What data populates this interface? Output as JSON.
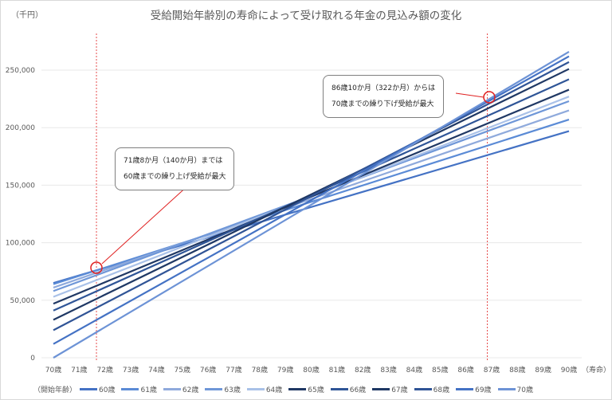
{
  "chart_data": {
    "type": "line",
    "title": "受給開始年齢別の寿命によって受け取れる年金の見込み額の変化",
    "ylabel": "（千円）",
    "xlabel": "（寿命）",
    "ylim": [
      0,
      250000
    ],
    "yticks": [
      "0",
      "50,000",
      "100,000",
      "150,000",
      "200,000",
      "250,000"
    ],
    "categories": [
      "70歳",
      "71歳",
      "72歳",
      "73歳",
      "74歳",
      "75歳",
      "76歳",
      "77歳",
      "78歳",
      "79歳",
      "80歳",
      "81歳",
      "82歳",
      "83歳",
      "84歳",
      "85歳",
      "86歳",
      "87歳",
      "88歳",
      "89歳",
      "90歳"
    ],
    "grid": true,
    "legend_position": "bottom",
    "legend_title": "（開始年齢）",
    "series": [
      {
        "name": "60歳",
        "color": "#4472c4",
        "start": 65000,
        "end": 197000
      },
      {
        "name": "61歳",
        "color": "#5b8bd6",
        "start": 64000,
        "end": 207000
      },
      {
        "name": "62歳",
        "color": "#8faadc",
        "start": 61000,
        "end": 215000
      },
      {
        "name": "63歳",
        "color": "#6f97d8",
        "start": 58000,
        "end": 223000
      },
      {
        "name": "64歳",
        "color": "#a9c1e8",
        "start": 53000,
        "end": 227000
      },
      {
        "name": "65歳",
        "color": "#203864",
        "start": 47000,
        "end": 233000
      },
      {
        "name": "66歳",
        "color": "#2f5597",
        "start": 41000,
        "end": 242000
      },
      {
        "name": "67歳",
        "color": "#1f3864",
        "start": 33000,
        "end": 251000
      },
      {
        "name": "68歳",
        "color": "#305496",
        "start": 24000,
        "end": 257000
      },
      {
        "name": "69歳",
        "color": "#4472c4",
        "start": 12000,
        "end": 262000
      },
      {
        "name": "70歳",
        "color": "#6d93d6",
        "start": 0,
        "end": 266000
      }
    ],
    "annotations": [
      {
        "text_line1": "71歳8か月（140か月）までは",
        "text_line2": "60歳までの繰り上げ受給が最大",
        "x_age": 71.67
      },
      {
        "text_line1": "86歳10か月（322か月）からは",
        "text_line2": "70歳までの繰り下げ受給が最大",
        "x_age": 86.83
      }
    ]
  },
  "header": {
    "title": "受給開始年齢別の寿命によって受け取れる年金の見込み額の変化",
    "unit": "（千円）"
  },
  "callouts": {
    "left": {
      "line1": "71歳8か月（140か月）までは",
      "line2": "60歳までの繰り上げ受給が最大"
    },
    "right": {
      "line1": "86歳10か月（322か月）からは",
      "line2": "70歳までの繰り下げ受給が最大"
    }
  },
  "legend": {
    "title": "（開始年齢）",
    "items": [
      "60歳",
      "61歳",
      "62歳",
      "63歳",
      "64歳",
      "65歳",
      "66歳",
      "67歳",
      "68歳",
      "69歳",
      "70歳"
    ]
  },
  "colors": {
    "marker": "#e02020",
    "grid": "#e8e8e8",
    "text": "#595959"
  }
}
